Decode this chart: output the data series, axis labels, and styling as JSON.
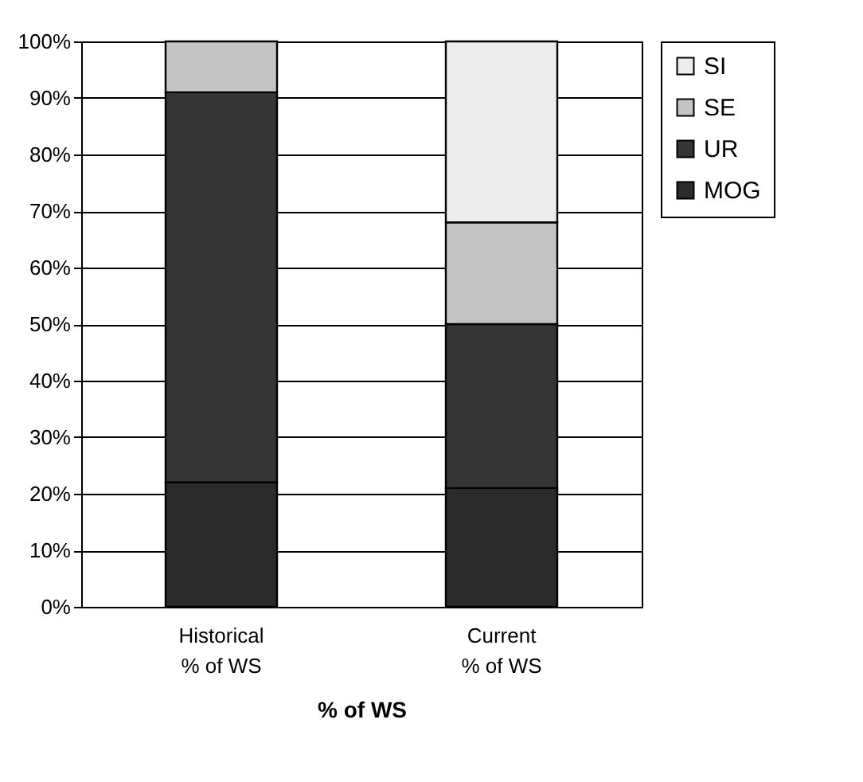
{
  "chart_data": {
    "type": "bar",
    "stacked": true,
    "xlabel": "% of WS",
    "categories": [
      "Historical\n% of WS",
      "Current\n% of WS"
    ],
    "series": [
      {
        "name": "MOG",
        "color": "#2b2b2b",
        "values": [
          22,
          21
        ]
      },
      {
        "name": "UR",
        "color": "#353535",
        "values": [
          69,
          29
        ]
      },
      {
        "name": "SE",
        "color": "#c4c4c4",
        "values": [
          9,
          18
        ]
      },
      {
        "name": "SI",
        "color": "#ececec",
        "values": [
          null,
          32
        ]
      }
    ],
    "ylim": [
      0,
      100
    ],
    "yticks": [
      {
        "value": 0,
        "label": "0%"
      },
      {
        "value": 10,
        "label": "10%"
      },
      {
        "value": 20,
        "label": "20%"
      },
      {
        "value": 30,
        "label": "30%"
      },
      {
        "value": 40,
        "label": "40%"
      },
      {
        "value": 50,
        "label": "50%"
      },
      {
        "value": 60,
        "label": "60%"
      },
      {
        "value": 70,
        "label": "70%"
      },
      {
        "value": 80,
        "label": "80%"
      },
      {
        "value": 90,
        "label": "90%"
      },
      {
        "value": 100,
        "label": "100%"
      }
    ],
    "grid": "y",
    "legend": "right"
  }
}
